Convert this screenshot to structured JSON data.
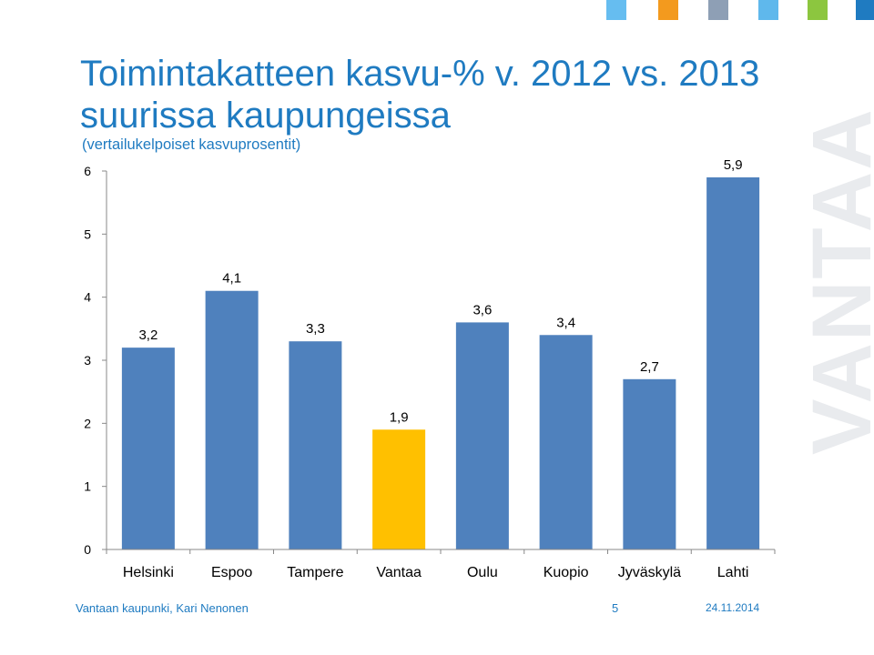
{
  "header": {
    "title": "Toimintakatteen kasvu-% v. 2012 vs. 2013 suurissa kaupungeissa",
    "subtitle": "(vertailukelpoiset kasvuprosentit)",
    "color_squares": [
      "#66bdf0",
      "#f39a1e",
      "#8e9fb5",
      "#5fb8ec",
      "#8cc63f",
      "#1f7bc1"
    ]
  },
  "watermark": {
    "text": "VANTAA",
    "color": "#e9ebee"
  },
  "chart_data": {
    "type": "bar",
    "categories": [
      "Helsinki",
      "Espoo",
      "Tampere",
      "Vantaa",
      "Oulu",
      "Kuopio",
      "Jyväskylä",
      "Lahti"
    ],
    "values": [
      3.2,
      4.1,
      3.3,
      1.9,
      3.6,
      3.4,
      2.7,
      5.9
    ],
    "data_labels": [
      "3,2",
      "4,1",
      "3,3",
      "1,9",
      "3,6",
      "3,4",
      "2,7",
      "5,9"
    ],
    "highlight_index": 3,
    "bar_color": "#4f81bd",
    "highlight_color": "#ffc000",
    "ylim": [
      0,
      6
    ],
    "yticks": [
      "0",
      "1",
      "2",
      "3",
      "4",
      "5",
      "6"
    ],
    "title": "",
    "xlabel": "",
    "ylabel": "",
    "grid": false,
    "legend": "none"
  },
  "footer": {
    "left": "Vantaan kaupunki, Kari Nenonen",
    "page": "5",
    "date": "24.11.2014"
  }
}
